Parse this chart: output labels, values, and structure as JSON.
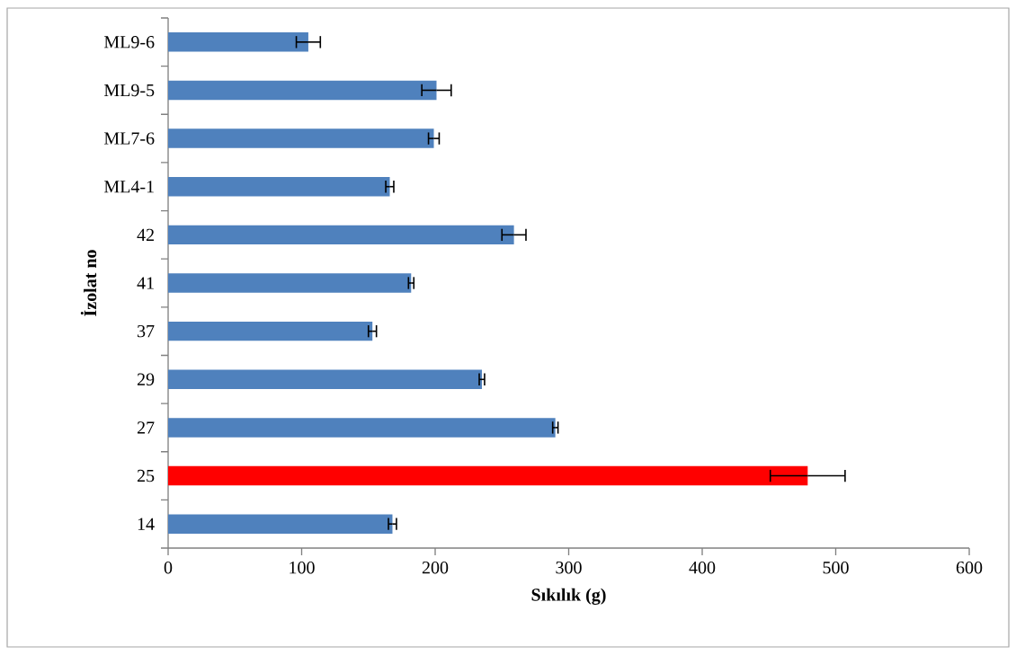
{
  "chart_data": {
    "type": "bar",
    "orientation": "horizontal",
    "categories": [
      "ML9-6",
      "ML9-5",
      "ML7-6",
      "ML4-1",
      "42",
      "41",
      "37",
      "29",
      "27",
      "25",
      "14"
    ],
    "values": [
      105,
      201,
      199,
      166,
      259,
      182,
      153,
      235,
      290,
      479,
      168
    ],
    "errors": [
      9,
      11,
      4,
      3,
      9,
      2,
      3,
      2,
      2,
      28,
      3
    ],
    "colors": [
      "#4f81bd",
      "#4f81bd",
      "#4f81bd",
      "#4f81bd",
      "#4f81bd",
      "#4f81bd",
      "#4f81bd",
      "#4f81bd",
      "#4f81bd",
      "#ff0000",
      "#4f81bd"
    ],
    "xlim": [
      0,
      600
    ],
    "xticks": [
      0,
      100,
      200,
      300,
      400,
      500,
      600
    ],
    "xlabel": "Sıkılık (g)",
    "ylabel": "İzolat no"
  }
}
